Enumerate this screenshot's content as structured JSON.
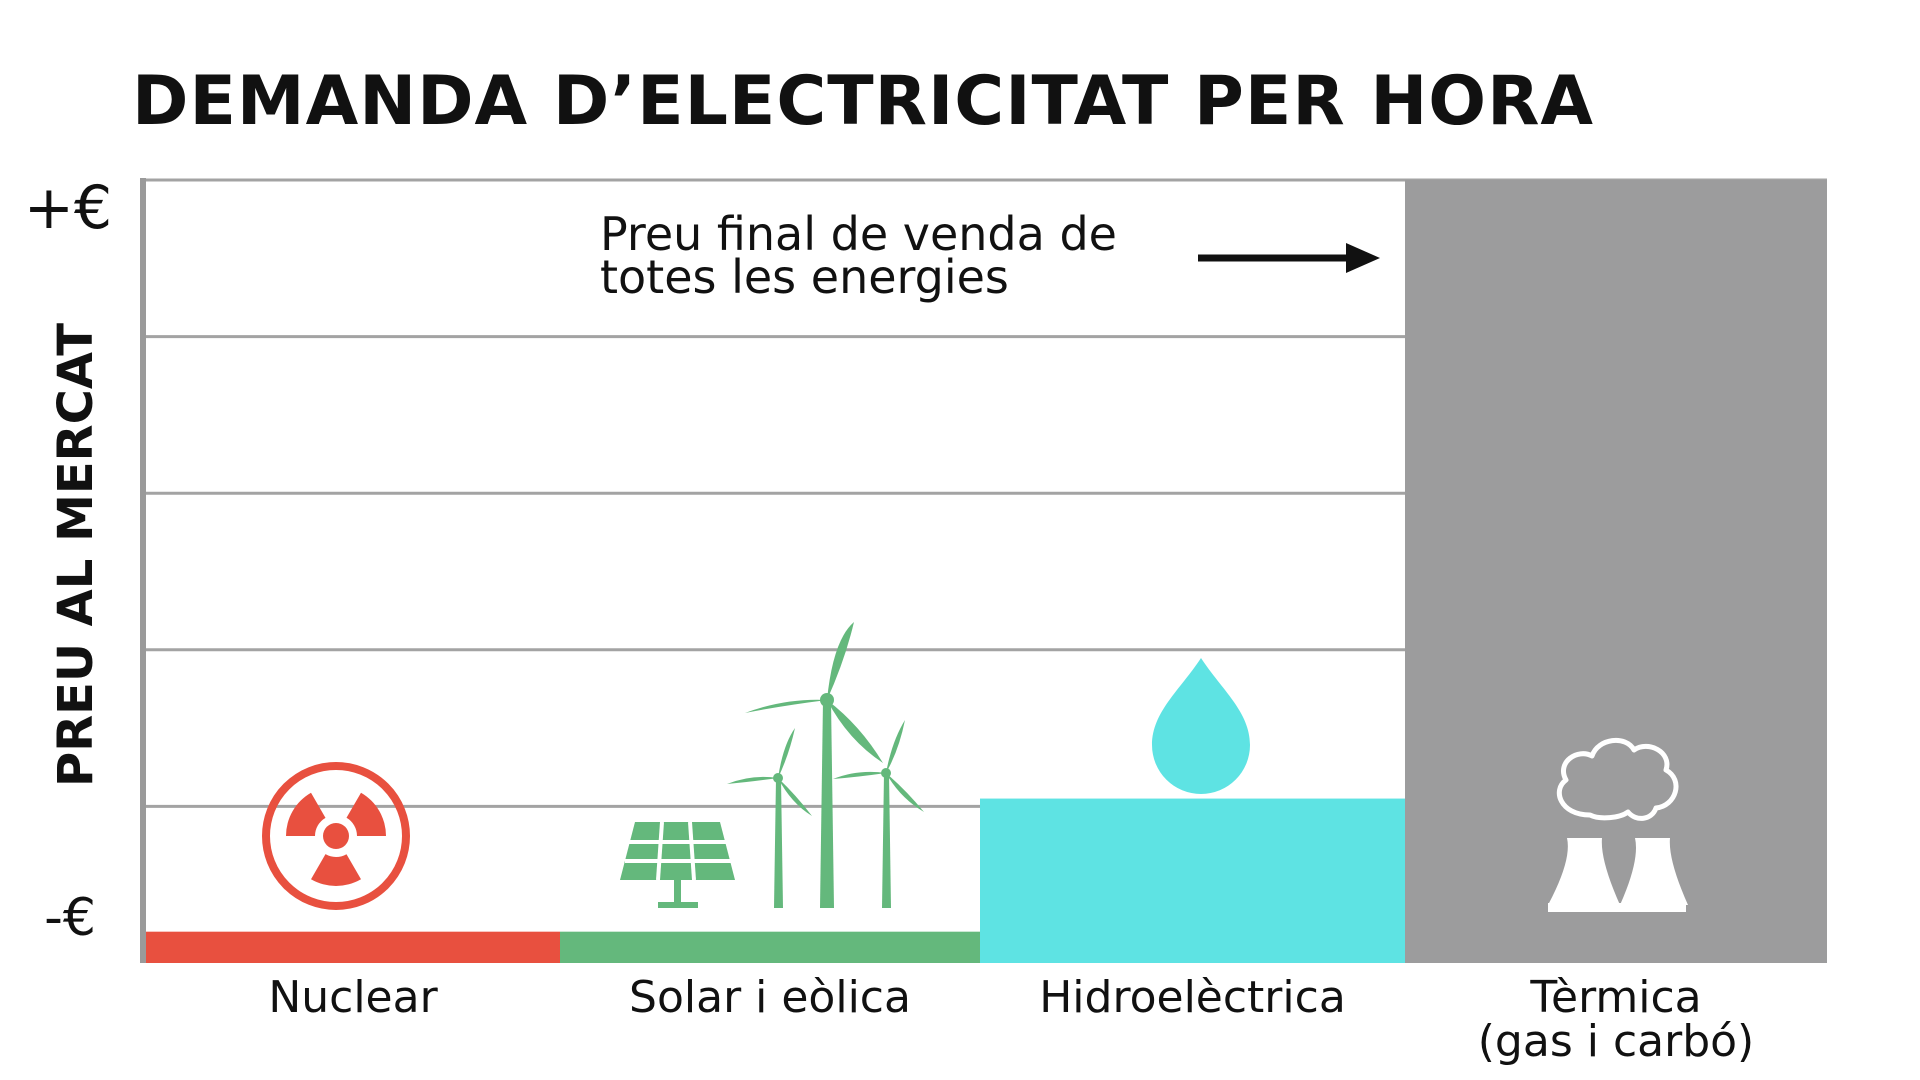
{
  "chart_data": {
    "type": "bar",
    "title": "DEMANDA D’ELECTRICITAT PER HORA",
    "ylabel": "PREU AL MERCAT",
    "y_tick_labels": {
      "top": "+€",
      "bottom": "-€"
    },
    "ylim": [
      0,
      5
    ],
    "gridlines": [
      1,
      2,
      3,
      4,
      5
    ],
    "grid": true,
    "categories": [
      "Nuclear",
      "Solar i eòlica",
      "Hidroelèctrica",
      "Tèrmica\n(gas i carbó)"
    ],
    "values": [
      0.2,
      0.2,
      1.05,
      5.0
    ],
    "colors": [
      "#e8503f",
      "#64b87c",
      "#5ee3e3",
      "#9c9c9d"
    ],
    "icons": [
      "radioactive-icon",
      "solar-wind-icon",
      "water-drop-icon",
      "thermal-plant-icon"
    ],
    "annotation": {
      "text_line1": "Preu final de venda de",
      "text_line2": "totes les energies",
      "points_to": "Tèrmica\n(gas i carbó)"
    }
  }
}
